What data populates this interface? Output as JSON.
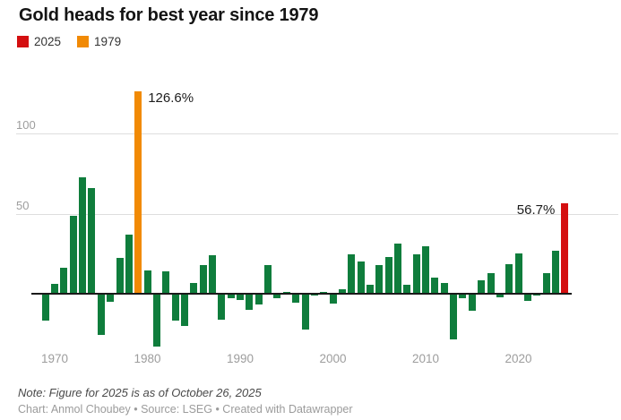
{
  "title": "Gold heads for best year since 1979",
  "legend": {
    "items": [
      {
        "label": "2025",
        "color": "#d40f10"
      },
      {
        "label": "1979",
        "color": "#f18a05"
      }
    ]
  },
  "chart_data": {
    "type": "bar",
    "title": "Gold heads for best year since 1979",
    "ylabel": "",
    "xlabel": "",
    "yticks": [
      50,
      100
    ],
    "ylim": [
      -35,
      135
    ],
    "grid": true,
    "x": [
      1969,
      1970,
      1971,
      1972,
      1973,
      1974,
      1975,
      1976,
      1977,
      1978,
      1979,
      1980,
      1981,
      1982,
      1983,
      1984,
      1985,
      1986,
      1987,
      1988,
      1989,
      1990,
      1991,
      1992,
      1993,
      1994,
      1995,
      1996,
      1997,
      1998,
      1999,
      2000,
      2001,
      2002,
      2003,
      2004,
      2005,
      2006,
      2007,
      2008,
      2009,
      2010,
      2011,
      2012,
      2013,
      2014,
      2015,
      2016,
      2017,
      2018,
      2019,
      2020,
      2021,
      2022,
      2023,
      2024,
      2025
    ],
    "values": [
      -16,
      6,
      16.5,
      48.7,
      72.5,
      66,
      -25.2,
      -4.6,
      22.6,
      37,
      126.6,
      14.5,
      -32.5,
      14,
      -16.3,
      -19.5,
      6.5,
      18,
      24.3,
      -15.8,
      -2.5,
      -3.5,
      -9.3,
      -6,
      17.7,
      -2.5,
      1.2,
      -5,
      -21.8,
      -0.8,
      0.9,
      -5.6,
      2.7,
      24.6,
      19.9,
      5.8,
      18.1,
      23.1,
      31.4,
      5.4,
      24.6,
      29.6,
      10.1,
      6.9,
      -28.2,
      -2.5,
      -10.2,
      8.4,
      12.9,
      -1.9,
      18.2,
      25,
      -3.7,
      -0.3,
      13.1,
      27,
      56.7
    ],
    "colors": {
      "default": "#0f7d3c",
      "1979": "#f18a05",
      "2025": "#d40f10"
    },
    "annotations": [
      {
        "year": 1979,
        "label": "126.6%",
        "side": "right"
      },
      {
        "year": 2025,
        "label": "56.7%",
        "side": "left"
      }
    ],
    "xticks": [
      1970,
      1980,
      1990,
      2000,
      2010,
      2020
    ]
  },
  "footer": {
    "note": "Note: Figure for 2025 is as of October 26, 2025",
    "byline": "Chart: Anmol Choubey • Source: LSEG • Created with Datawrapper"
  }
}
